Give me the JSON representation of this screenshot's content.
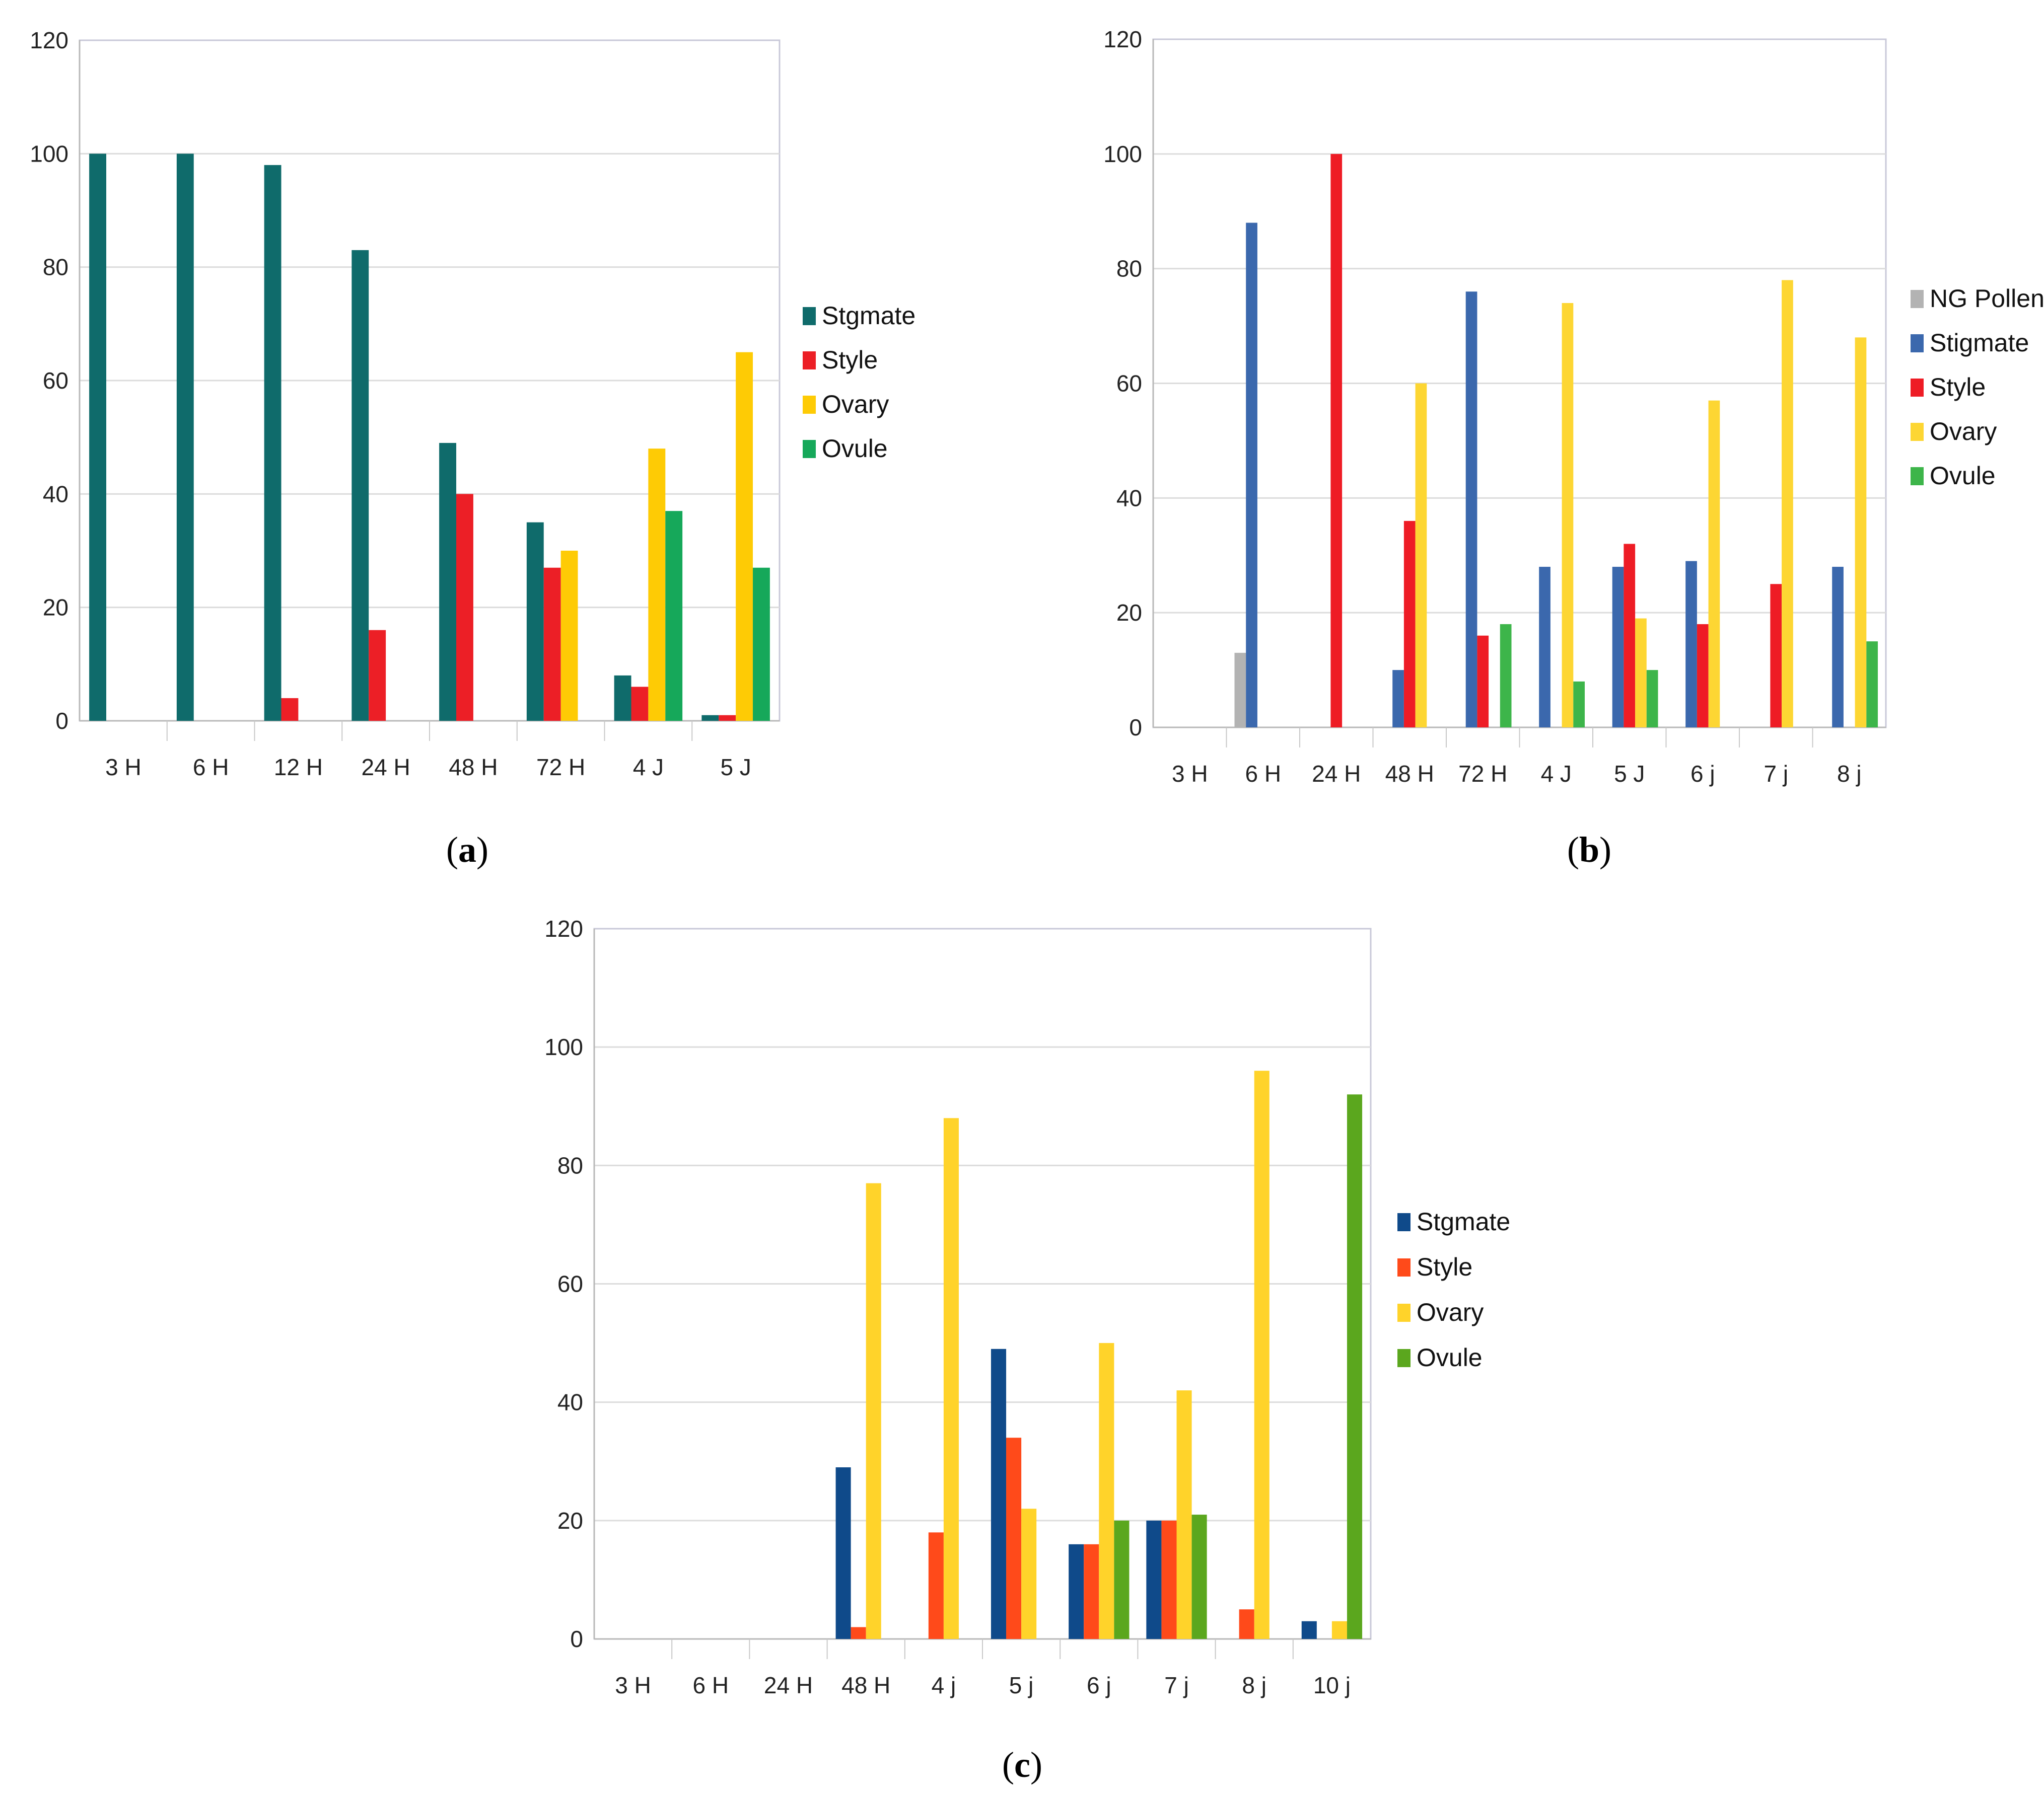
{
  "chart_data": [
    {
      "type": "bar",
      "caption": "a",
      "categories": [
        "3 H",
        "6 H",
        "12 H",
        "24 H",
        "48 H",
        "72 H",
        "4 J",
        "5 J"
      ],
      "series": [
        {
          "name": "Stgmate",
          "color": "#0f6b6b",
          "values": [
            100,
            100,
            98,
            83,
            49,
            35,
            8,
            1
          ]
        },
        {
          "name": "Style",
          "color": "#ec1f26",
          "values": [
            0,
            0,
            4,
            16,
            40,
            27,
            6,
            1
          ]
        },
        {
          "name": "Ovary",
          "color": "#fecb05",
          "values": [
            0,
            0,
            0,
            0,
            0,
            30,
            48,
            65
          ]
        },
        {
          "name": "Ovule",
          "color": "#16a85a",
          "values": [
            0,
            0,
            0,
            0,
            0,
            0,
            37,
            27
          ]
        }
      ],
      "yticks": [
        "0",
        "20",
        "40",
        "60",
        "80",
        "100",
        "120"
      ],
      "ylim": [
        0,
        120
      ],
      "grid": true,
      "legend": "right"
    },
    {
      "type": "bar",
      "caption": "b",
      "categories": [
        "3 H",
        "6 H",
        "24 H",
        "48 H",
        "72 H",
        "4 J",
        "5 J",
        "6 j",
        "7 j",
        "8 j"
      ],
      "series": [
        {
          "name": "NG Pollen",
          "color": "#b3b3b3",
          "values": [
            0,
            13,
            0,
            0,
            0,
            0,
            0,
            0,
            0,
            0
          ]
        },
        {
          "name": "Stigmate",
          "color": "#3b68ad",
          "values": [
            0,
            88,
            0,
            10,
            76,
            28,
            28,
            29,
            0,
            28
          ]
        },
        {
          "name": "Style",
          "color": "#ee1c25",
          "values": [
            0,
            0,
            100,
            36,
            16,
            0,
            32,
            18,
            25,
            0
          ]
        },
        {
          "name": "Ovary",
          "color": "#fdd633",
          "values": [
            0,
            0,
            0,
            60,
            0,
            74,
            19,
            57,
            78,
            68
          ]
        },
        {
          "name": "Ovule",
          "color": "#3db54a",
          "values": [
            0,
            0,
            0,
            0,
            18,
            8,
            10,
            0,
            0,
            15
          ]
        }
      ],
      "yticks": [
        "0",
        "20",
        "40",
        "60",
        "80",
        "100",
        "120"
      ],
      "ylim": [
        0,
        120
      ],
      "grid": true,
      "legend": "right"
    },
    {
      "type": "bar",
      "caption": "c",
      "categories": [
        "3 H",
        "6 H",
        "24 H",
        "48 H",
        "4 j",
        "5 j",
        "6 j",
        "7 j",
        "8 j",
        "10 j"
      ],
      "series": [
        {
          "name": "Stgmate",
          "color": "#0f4a8a",
          "values": [
            0,
            0,
            0,
            29,
            0,
            49,
            16,
            20,
            0,
            3
          ]
        },
        {
          "name": "Style",
          "color": "#ff4a1a",
          "values": [
            0,
            0,
            0,
            2,
            18,
            34,
            16,
            20,
            5,
            0
          ]
        },
        {
          "name": "Ovary",
          "color": "#ffd32a",
          "values": [
            0,
            0,
            0,
            77,
            88,
            22,
            50,
            42,
            96,
            3
          ]
        },
        {
          "name": "Ovule",
          "color": "#5ba71e",
          "values": [
            0,
            0,
            0,
            0,
            0,
            0,
            20,
            21,
            0,
            92
          ]
        }
      ],
      "yticks": [
        "0",
        "20",
        "40",
        "60",
        "80",
        "100",
        "120"
      ],
      "ylim": [
        0,
        120
      ],
      "grid": true,
      "legend": "right"
    }
  ]
}
